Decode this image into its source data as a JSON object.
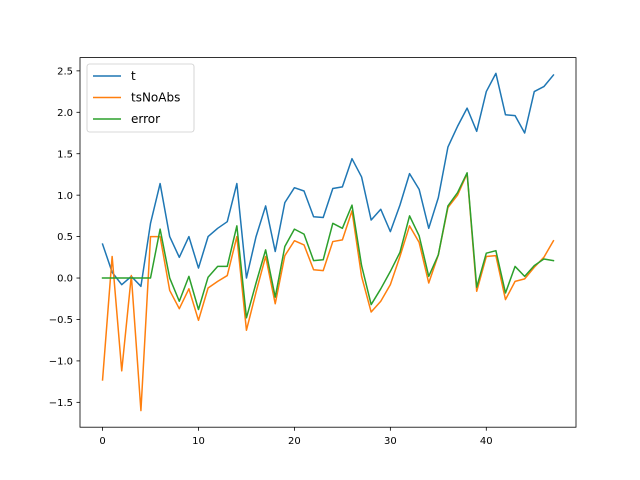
{
  "chart_data": {
    "type": "line",
    "x": [
      0,
      1,
      2,
      3,
      4,
      5,
      6,
      7,
      8,
      9,
      10,
      11,
      12,
      13,
      14,
      15,
      16,
      17,
      18,
      19,
      20,
      21,
      22,
      23,
      24,
      25,
      26,
      27,
      28,
      29,
      30,
      31,
      32,
      33,
      34,
      35,
      36,
      37,
      38,
      39,
      40,
      41,
      42,
      43,
      44,
      45,
      46,
      47
    ],
    "series": [
      {
        "name": "t",
        "color": "#1f77b4",
        "values": [
          0.41,
          0.07,
          -0.08,
          0.02,
          -0.1,
          0.66,
          1.14,
          0.5,
          0.25,
          0.5,
          0.12,
          0.5,
          0.6,
          0.68,
          1.14,
          0.0,
          0.5,
          0.87,
          0.32,
          0.91,
          1.09,
          1.05,
          0.74,
          0.73,
          1.08,
          1.1,
          1.44,
          1.22,
          0.7,
          0.83,
          0.56,
          0.88,
          1.26,
          1.07,
          0.6,
          0.97,
          1.58,
          1.83,
          2.05,
          1.77,
          2.25,
          2.47,
          1.97,
          1.96,
          1.75,
          2.25,
          2.31,
          2.45
        ]
      },
      {
        "name": "tsNoAbs",
        "color": "#ff7f0e",
        "values": [
          -1.23,
          0.26,
          -1.12,
          0.03,
          -1.6,
          0.5,
          0.5,
          -0.15,
          -0.37,
          -0.13,
          -0.51,
          -0.12,
          -0.04,
          0.03,
          0.5,
          -0.63,
          -0.17,
          0.26,
          -0.31,
          0.27,
          0.45,
          0.4,
          0.1,
          0.09,
          0.44,
          0.46,
          0.81,
          0.02,
          -0.41,
          -0.28,
          -0.08,
          0.26,
          0.63,
          0.43,
          -0.06,
          0.28,
          0.85,
          1.0,
          1.26,
          -0.16,
          0.26,
          0.27,
          -0.26,
          -0.04,
          -0.01,
          0.13,
          0.25,
          0.45
        ]
      },
      {
        "name": "error",
        "color": "#2ca02c",
        "values": [
          0.0,
          0.0,
          0.0,
          0.0,
          0.0,
          0.0,
          0.59,
          0.0,
          -0.28,
          0.02,
          -0.38,
          0.01,
          0.14,
          0.14,
          0.63,
          -0.48,
          -0.06,
          0.34,
          -0.23,
          0.38,
          0.59,
          0.53,
          0.21,
          0.22,
          0.66,
          0.6,
          0.88,
          0.15,
          -0.32,
          -0.13,
          0.08,
          0.31,
          0.75,
          0.51,
          0.02,
          0.28,
          0.87,
          1.03,
          1.27,
          -0.11,
          0.3,
          0.33,
          -0.18,
          0.14,
          0.02,
          0.15,
          0.23,
          0.21
        ]
      }
    ],
    "xlim": [
      -2.35,
      49.35
    ],
    "ylim": [
      -1.8,
      2.66
    ],
    "xticks": [
      0,
      10,
      20,
      30,
      40
    ],
    "xtick_labels": [
      "0",
      "10",
      "20",
      "30",
      "40"
    ],
    "yticks": [
      -1.5,
      -1.0,
      -0.5,
      0.0,
      0.5,
      1.0,
      1.5,
      2.0,
      2.5
    ],
    "ytick_labels": [
      "−1.5",
      "−1.0",
      "−0.5",
      "0.0",
      "0.5",
      "1.0",
      "1.5",
      "2.0",
      "2.5"
    ],
    "title": "",
    "xlabel": "",
    "ylabel": "",
    "grid": false,
    "legend_position": "upper-left"
  }
}
